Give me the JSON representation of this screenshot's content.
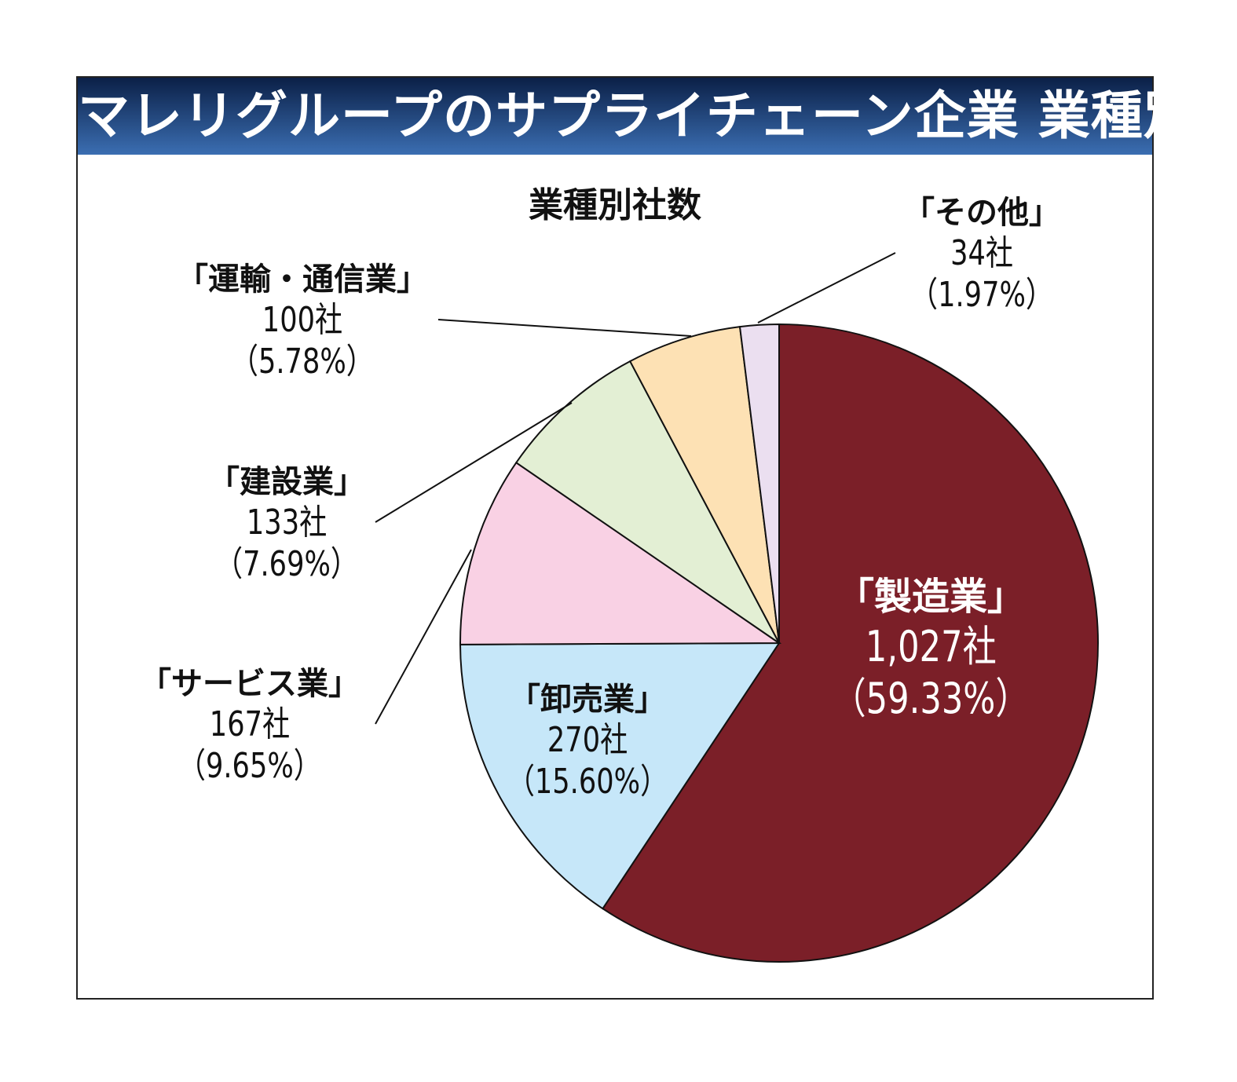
{
  "title": "マレリグループのサプライチェーン企業 業種別",
  "chart_data": {
    "type": "pie",
    "title": "業種別社数",
    "start": "12 o'clock, clockwise",
    "slices": [
      {
        "label": "「製造業」",
        "count": "1,027社",
        "pct": "（59.33%）",
        "value": 1027,
        "percent": 59.33,
        "color": "#7b1f28"
      },
      {
        "label": "「卸売業」",
        "count": "270社",
        "pct": "（15.60%）",
        "value": 270,
        "percent": 15.6,
        "color": "#c6e7f9"
      },
      {
        "label": "「サービス業」",
        "count": "167社",
        "pct": "（9.65%）",
        "value": 167,
        "percent": 9.65,
        "color": "#f9d1e4"
      },
      {
        "label": "「建設業」",
        "count": "133社",
        "pct": "（7.69%）",
        "value": 133,
        "percent": 7.69,
        "color": "#e3efd4"
      },
      {
        "label": "「運輸・通信業」",
        "count": "100社",
        "pct": "（5.78%）",
        "value": 100,
        "percent": 5.78,
        "color": "#fde1b4"
      },
      {
        "label": "「その他」",
        "count": "34社",
        "pct": "（1.97%）",
        "value": 34,
        "percent": 1.97,
        "color": "#ebdff0"
      }
    ]
  }
}
